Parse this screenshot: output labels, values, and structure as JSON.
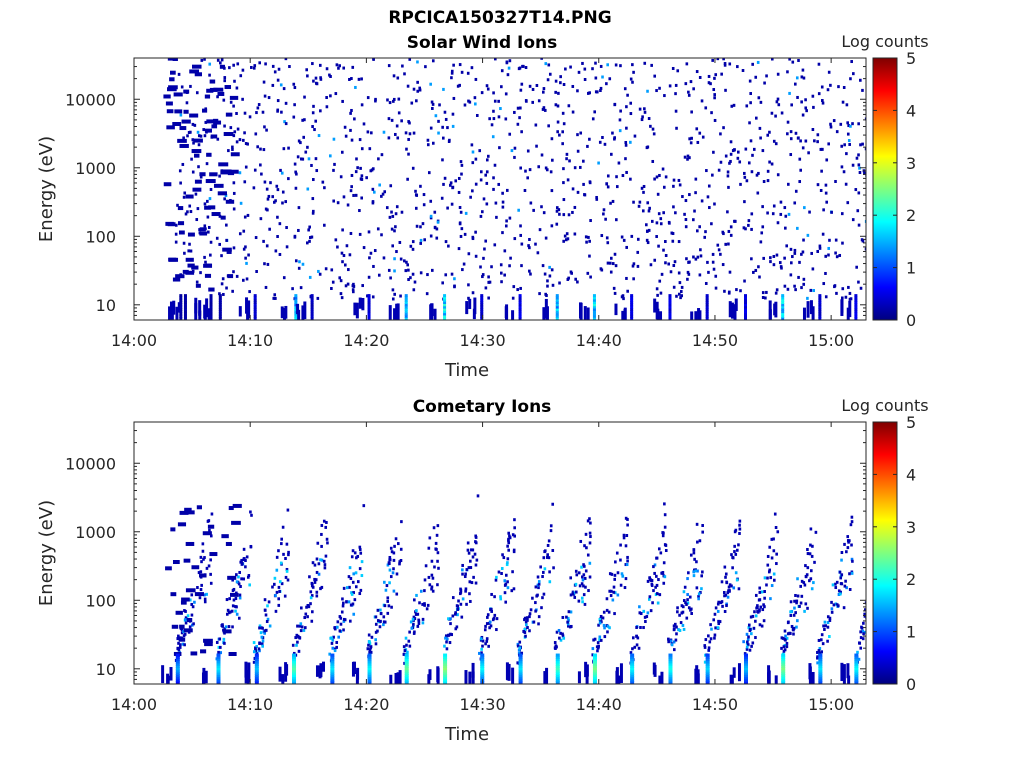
{
  "figure": {
    "title": "RPCICA150327T14.PNG"
  },
  "colormap": {
    "name": "jet",
    "stops": [
      "#00007f",
      "#0000ff",
      "#007fff",
      "#00ffff",
      "#7fff7f",
      "#ffff00",
      "#ff7f00",
      "#ff0000",
      "#7f0000"
    ]
  },
  "chart_data": [
    {
      "type": "heatmap",
      "title": "Solar Wind Ions",
      "xlabel": "Time",
      "ylabel": "Energy (eV)",
      "x_tick_labels": [
        "14:00",
        "14:10",
        "14:20",
        "14:30",
        "14:40",
        "14:50",
        "15:00"
      ],
      "x_tick_minutes": [
        0,
        10,
        20,
        30,
        40,
        50,
        60
      ],
      "xlim_minutes": [
        0,
        63
      ],
      "y_scale": "log",
      "y_tick_labels": [
        "10",
        "100",
        "1000",
        "10000"
      ],
      "y_tick_values": [
        10,
        100,
        1000,
        10000
      ],
      "ylim": [
        6,
        40000
      ],
      "colorbar": {
        "label": "Log counts",
        "ticks": [
          "0",
          "1",
          "2",
          "3",
          "4",
          "5"
        ],
        "range": [
          0,
          5
        ]
      },
      "sweep_start_minutes": [
        3.5,
        7.0,
        10.2,
        13.5,
        16.7,
        19.9,
        23.1,
        26.4,
        29.6,
        32.9,
        36.1,
        39.3,
        42.6,
        45.8,
        49.0,
        52.3,
        55.5,
        58.7,
        62.0
      ],
      "low_energy_bursts": [
        {
          "t": 3.9,
          "e": 8,
          "v": 0.2
        },
        {
          "t": 4.3,
          "e": 10,
          "v": 0.2
        },
        {
          "t": 6.5,
          "e": 9,
          "v": 0.2
        },
        {
          "t": 7.3,
          "e": 8,
          "v": 0.2
        },
        {
          "t": 10.3,
          "e": 8,
          "v": 0.4
        },
        {
          "t": 13.8,
          "e": 9,
          "v": 1.5
        },
        {
          "t": 15.2,
          "e": 8,
          "v": 0.3
        },
        {
          "t": 20.1,
          "e": 8,
          "v": 0.5
        },
        {
          "t": 23.3,
          "e": 9,
          "v": 1.6
        },
        {
          "t": 26.6,
          "e": 9,
          "v": 1.8
        },
        {
          "t": 29.8,
          "e": 8,
          "v": 0.4
        },
        {
          "t": 33.1,
          "e": 8,
          "v": 0.5
        },
        {
          "t": 36.3,
          "e": 9,
          "v": 1.6
        },
        {
          "t": 39.5,
          "e": 9,
          "v": 1.7
        },
        {
          "t": 42.7,
          "e": 8,
          "v": 0.5
        },
        {
          "t": 46.0,
          "e": 8,
          "v": 0.5
        },
        {
          "t": 49.2,
          "e": 8,
          "v": 0.4
        },
        {
          "t": 52.5,
          "e": 8,
          "v": 0.5
        },
        {
          "t": 55.7,
          "e": 9,
          "v": 1.7
        },
        {
          "t": 58.9,
          "e": 8,
          "v": 0.4
        },
        {
          "t": 62.0,
          "e": 8,
          "v": 0.5
        }
      ]
    },
    {
      "type": "heatmap",
      "title": "Cometary Ions",
      "xlabel": "Time",
      "ylabel": "Energy (eV)",
      "x_tick_labels": [
        "14:00",
        "14:10",
        "14:20",
        "14:30",
        "14:40",
        "14:50",
        "15:00"
      ],
      "x_tick_minutes": [
        0,
        10,
        20,
        30,
        40,
        50,
        60
      ],
      "xlim_minutes": [
        0,
        63
      ],
      "y_scale": "log",
      "y_tick_labels": [
        "10",
        "100",
        "1000",
        "10000"
      ],
      "y_tick_values": [
        10,
        100,
        1000,
        10000
      ],
      "ylim": [
        6,
        40000
      ],
      "colorbar": {
        "label": "Log counts",
        "ticks": [
          "0",
          "1",
          "2",
          "3",
          "4",
          "5"
        ],
        "range": [
          0,
          5
        ]
      },
      "sweep_start_minutes": [
        3.5,
        7.0,
        10.2,
        13.5,
        16.7,
        19.9,
        23.1,
        26.4,
        29.6,
        32.9,
        36.1,
        39.3,
        42.6,
        45.8,
        49.0,
        52.3,
        55.5,
        58.7,
        62.0
      ],
      "low_energy_bursts": [
        {
          "t": 3.6,
          "e": 10,
          "v": 1.5
        },
        {
          "t": 7.1,
          "e": 10,
          "v": 1.8
        },
        {
          "t": 10.4,
          "e": 10,
          "v": 1.6
        },
        {
          "t": 13.6,
          "e": 10,
          "v": 2.3
        },
        {
          "t": 16.9,
          "e": 10,
          "v": 1.8
        },
        {
          "t": 20.1,
          "e": 10,
          "v": 1.9
        },
        {
          "t": 23.3,
          "e": 10,
          "v": 2.4
        },
        {
          "t": 26.6,
          "e": 10,
          "v": 2.6
        },
        {
          "t": 29.8,
          "e": 10,
          "v": 1.9
        },
        {
          "t": 33.1,
          "e": 10,
          "v": 1.8
        },
        {
          "t": 36.3,
          "e": 10,
          "v": 2.2
        },
        {
          "t": 39.5,
          "e": 10,
          "v": 2.5
        },
        {
          "t": 42.7,
          "e": 10,
          "v": 1.9
        },
        {
          "t": 46.0,
          "e": 10,
          "v": 2.0
        },
        {
          "t": 49.2,
          "e": 10,
          "v": 1.7
        },
        {
          "t": 52.5,
          "e": 10,
          "v": 1.6
        },
        {
          "t": 55.7,
          "e": 10,
          "v": 2.5
        },
        {
          "t": 58.9,
          "e": 10,
          "v": 1.8
        },
        {
          "t": 62.0,
          "e": 10,
          "v": 1.9
        }
      ]
    }
  ]
}
